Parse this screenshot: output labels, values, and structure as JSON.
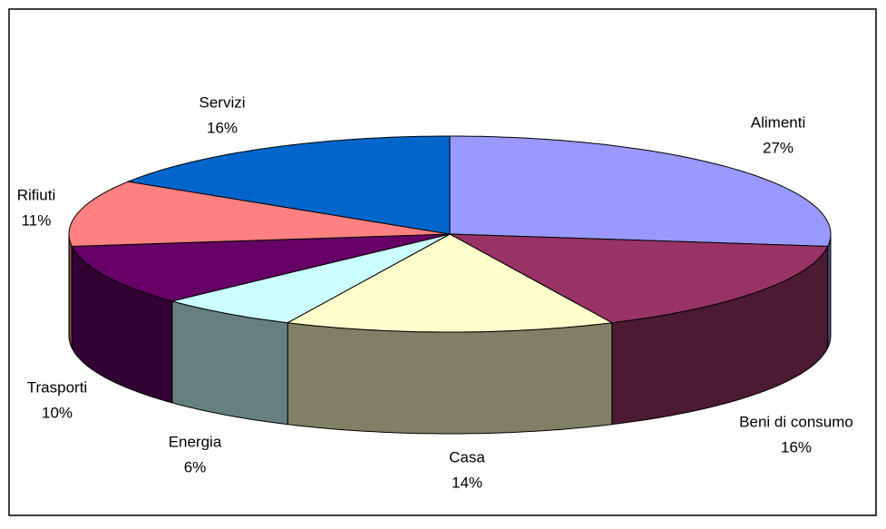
{
  "chart_data": {
    "type": "pie3d",
    "categories": [
      "Alimenti",
      "Beni di consumo",
      "Casa",
      "Energia",
      "Trasporti",
      "Rifiuti",
      "Servizi"
    ],
    "values": [
      27,
      16,
      14,
      6,
      10,
      11,
      16
    ],
    "value_labels": [
      "27%",
      "16%",
      "14%",
      "6%",
      "10%",
      "11%",
      "16%"
    ],
    "colors": [
      "#9999ff",
      "#993366",
      "#ffffcc",
      "#ccffff",
      "#660066",
      "#ff8080",
      "#0066cc"
    ]
  }
}
